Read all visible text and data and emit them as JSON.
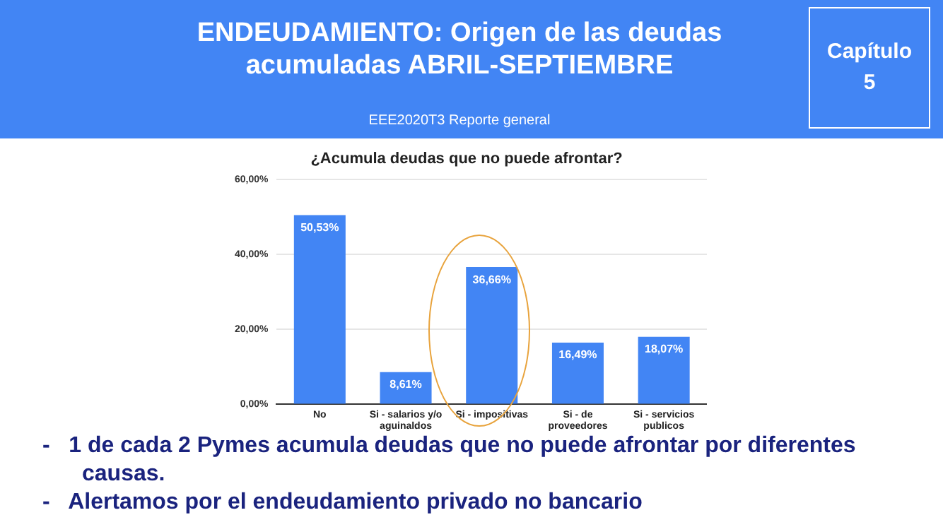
{
  "chart_data": {
    "type": "bar",
    "title": "¿Acumula deudas que no puede afrontar?",
    "categories": [
      "No",
      "Si - salarios y/o aguinaldos",
      "Si - impositivas",
      "Si - de proveedores",
      "Si - servicios publicos"
    ],
    "values": [
      50.53,
      8.61,
      36.66,
      16.49,
      18.07
    ],
    "value_labels": [
      "50,53%",
      "8,61%",
      "36,66%",
      "16,49%",
      "18,07%"
    ],
    "color": "#4285f4",
    "ylim": [
      0,
      60
    ],
    "yticks": [
      {
        "value": 0,
        "label": "0,00%"
      },
      {
        "value": 20,
        "label": "20,00%"
      },
      {
        "value": 40,
        "label": "40,00%"
      },
      {
        "value": 60,
        "label": "60,00%"
      }
    ],
    "grid": "y",
    "annotations": [
      "ENDEUDAMIENTO: Origen de las deudas acumuladas ABRIL-SEPTIEMBRE",
      "EEE2020T3  Reporte general",
      "Capítulo",
      "5",
      "-   1 de cada 2 Pymes acumula deudas que no puede afrontar por diferentes causas.",
      "-   Alertamos por el endeudamiento privado no bancario"
    ]
  }
}
